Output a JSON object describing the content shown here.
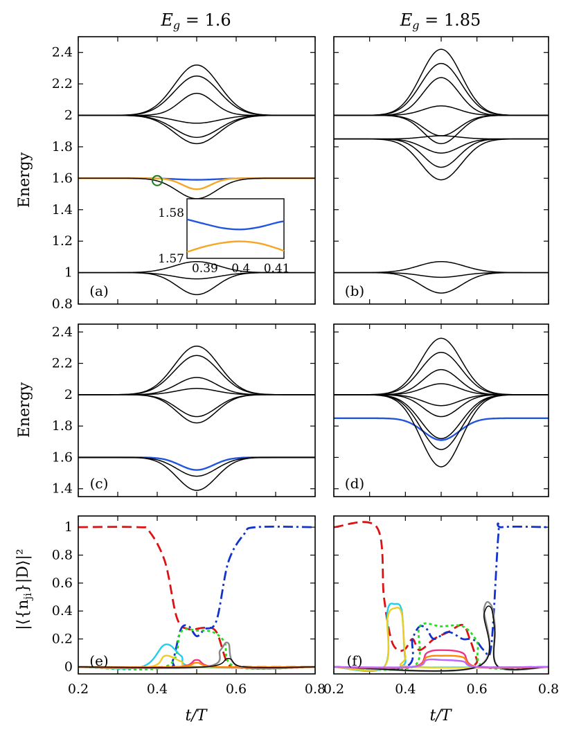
{
  "figure": {
    "col_titles": [
      "E_g = 1.6",
      "E_g = 1.85"
    ],
    "ylabel_energy": "Energy",
    "ylabel_overlap": "|⟨{n_ji}|D⟩|²",
    "xlabel": "t/T"
  },
  "chart_data": [
    {
      "panel": "(a)",
      "type": "line",
      "xlim": [
        0.2,
        0.8
      ],
      "ylim": [
        0.8,
        2.5
      ],
      "yticks": [
        "0.8",
        "1",
        "1.2",
        "1.4",
        "1.6",
        "1.8",
        "2",
        "2.2",
        "2.4"
      ],
      "xticks": [],
      "series": [
        {
          "kind": "bump",
          "base": 2.0,
          "center": 0.5,
          "width": 0.08,
          "peak": 0.32,
          "color": "#000000"
        },
        {
          "kind": "bump",
          "base": 2.0,
          "center": 0.5,
          "width": 0.08,
          "peak": 0.25,
          "color": "#000000"
        },
        {
          "kind": "bump",
          "base": 2.0,
          "center": 0.5,
          "width": 0.06,
          "peak": 0.14,
          "color": "#000000"
        },
        {
          "kind": "bump",
          "base": 2.0,
          "center": 0.5,
          "width": 0.08,
          "peak": -0.05,
          "color": "#000000"
        },
        {
          "kind": "bump",
          "base": 2.0,
          "center": 0.5,
          "width": 0.08,
          "peak": -0.14,
          "color": "#000000"
        },
        {
          "kind": "bump",
          "base": 2.0,
          "center": 0.5,
          "width": 0.08,
          "peak": -0.18,
          "color": "#000000"
        },
        {
          "kind": "bump",
          "base": 1.6,
          "center": 0.5,
          "width": 0.07,
          "peak": -0.01,
          "color": "#2255dd"
        },
        {
          "kind": "bump",
          "base": 1.6,
          "center": 0.5,
          "width": 0.05,
          "peak": -0.07,
          "color": "#f5a623"
        },
        {
          "kind": "bump",
          "base": 1.6,
          "center": 0.5,
          "width": 0.07,
          "peak": -0.13,
          "color": "#000000"
        },
        {
          "kind": "bump",
          "base": 1.0,
          "center": 0.5,
          "width": 0.08,
          "peak": 0.07,
          "color": "#000000"
        },
        {
          "kind": "bump",
          "base": 1.0,
          "center": 0.5,
          "width": 0.08,
          "peak": -0.04,
          "color": "#000000"
        },
        {
          "kind": "bump",
          "base": 1.0,
          "center": 0.5,
          "width": 0.07,
          "peak": -0.14,
          "color": "#000000"
        }
      ],
      "marker": {
        "x": 0.4,
        "y": 1.585,
        "color": "#1a7a1a"
      },
      "inset": {
        "xlim": [
          0.385,
          0.412
        ],
        "ylim": [
          1.57,
          1.583
        ],
        "xticks": [
          "0.39",
          "0.4",
          "0.41"
        ],
        "yticks": [
          "1.57",
          "1.58"
        ],
        "series": [
          {
            "x": [
              0.385,
              0.39,
              0.395,
              0.4,
              0.405,
              0.41,
              0.412
            ],
            "y": [
              1.5785,
              1.5775,
              1.5766,
              1.5763,
              1.5768,
              1.5778,
              1.5781
            ],
            "color": "#2255dd"
          },
          {
            "x": [
              0.385,
              0.39,
              0.395,
              0.4,
              0.405,
              0.41,
              0.412
            ],
            "y": [
              1.5714,
              1.5726,
              1.5734,
              1.5737,
              1.5733,
              1.5722,
              1.5716
            ],
            "color": "#f5a623"
          }
        ]
      }
    },
    {
      "panel": "(b)",
      "type": "line",
      "xlim": [
        0.2,
        0.8
      ],
      "ylim": [
        0.8,
        2.5
      ],
      "yticks": [],
      "xticks": [],
      "series": [
        {
          "kind": "bump",
          "base": 2.0,
          "center": 0.5,
          "width": 0.08,
          "peak": 0.42,
          "color": "#000000"
        },
        {
          "kind": "bump",
          "base": 2.0,
          "center": 0.5,
          "width": 0.08,
          "peak": 0.33,
          "color": "#000000"
        },
        {
          "kind": "bump",
          "base": 2.0,
          "center": 0.5,
          "width": 0.07,
          "peak": 0.24,
          "color": "#000000"
        },
        {
          "kind": "bump",
          "base": 2.0,
          "center": 0.5,
          "width": 0.07,
          "peak": 0.06,
          "color": "#000000"
        },
        {
          "kind": "bump",
          "base": 2.0,
          "center": 0.5,
          "width": 0.07,
          "peak": -0.13,
          "color": "#000000"
        },
        {
          "kind": "bump",
          "base": 2.0,
          "center": 0.5,
          "width": 0.07,
          "peak": -0.18,
          "color": "#000000"
        },
        {
          "kind": "bump",
          "base": 1.85,
          "center": 0.5,
          "width": 0.07,
          "peak": 0.02,
          "color": "#000000"
        },
        {
          "kind": "bump",
          "base": 1.85,
          "center": 0.5,
          "width": 0.07,
          "peak": -0.09,
          "color": "#000000"
        },
        {
          "kind": "bump",
          "base": 1.85,
          "center": 0.5,
          "width": 0.07,
          "peak": -0.18,
          "color": "#000000"
        },
        {
          "kind": "bump",
          "base": 1.85,
          "center": 0.5,
          "width": 0.08,
          "peak": -0.26,
          "color": "#000000"
        },
        {
          "kind": "bump",
          "base": 1.0,
          "center": 0.5,
          "width": 0.09,
          "peak": 0.07,
          "color": "#000000"
        },
        {
          "kind": "bump",
          "base": 1.0,
          "center": 0.5,
          "width": 0.08,
          "peak": -0.03,
          "color": "#000000"
        },
        {
          "kind": "bump",
          "base": 1.0,
          "center": 0.5,
          "width": 0.08,
          "peak": -0.13,
          "color": "#000000"
        }
      ]
    },
    {
      "panel": "(c)",
      "type": "line",
      "xlim": [
        0.2,
        0.8
      ],
      "ylim": [
        1.35,
        2.45
      ],
      "yticks": [
        "1.4",
        "1.6",
        "1.8",
        "2",
        "2.2",
        "2.4"
      ],
      "xticks": [],
      "series": [
        {
          "kind": "bump",
          "base": 2.0,
          "center": 0.5,
          "width": 0.08,
          "peak": 0.31,
          "color": "#000000"
        },
        {
          "kind": "bump",
          "base": 2.0,
          "center": 0.5,
          "width": 0.08,
          "peak": 0.25,
          "color": "#000000"
        },
        {
          "kind": "bump",
          "base": 2.0,
          "center": 0.5,
          "width": 0.07,
          "peak": 0.11,
          "color": "#000000"
        },
        {
          "kind": "bump",
          "base": 2.0,
          "center": 0.5,
          "width": 0.07,
          "peak": 0.04,
          "color": "#000000"
        },
        {
          "kind": "bump",
          "base": 2.0,
          "center": 0.5,
          "width": 0.07,
          "peak": -0.14,
          "color": "#000000"
        },
        {
          "kind": "bump",
          "base": 2.0,
          "center": 0.5,
          "width": 0.07,
          "peak": -0.18,
          "color": "#000000"
        },
        {
          "kind": "bump",
          "base": 1.6,
          "center": 0.5,
          "width": 0.06,
          "peak": -0.08,
          "color": "#2255dd"
        },
        {
          "kind": "bump",
          "base": 1.6,
          "center": 0.5,
          "width": 0.07,
          "peak": -0.12,
          "color": "#000000"
        },
        {
          "kind": "bump",
          "base": 1.6,
          "center": 0.5,
          "width": 0.07,
          "peak": -0.21,
          "color": "#000000"
        }
      ]
    },
    {
      "panel": "(d)",
      "type": "line",
      "xlim": [
        0.2,
        0.8
      ],
      "ylim": [
        1.35,
        2.45
      ],
      "yticks": [],
      "xticks": [],
      "series": [
        {
          "kind": "bump",
          "base": 2.0,
          "center": 0.5,
          "width": 0.08,
          "peak": 0.36,
          "color": "#000000"
        },
        {
          "kind": "bump",
          "base": 2.0,
          "center": 0.5,
          "width": 0.08,
          "peak": 0.27,
          "color": "#000000"
        },
        {
          "kind": "bump",
          "base": 2.0,
          "center": 0.5,
          "width": 0.07,
          "peak": 0.16,
          "color": "#000000"
        },
        {
          "kind": "bump",
          "base": 2.0,
          "center": 0.5,
          "width": 0.07,
          "peak": 0.07,
          "color": "#000000"
        },
        {
          "kind": "bump",
          "base": 2.0,
          "center": 0.5,
          "width": 0.07,
          "peak": -0.07,
          "color": "#000000"
        },
        {
          "kind": "bump",
          "base": 2.0,
          "center": 0.5,
          "width": 0.07,
          "peak": -0.14,
          "color": "#000000"
        },
        {
          "kind": "bump",
          "base": 1.85,
          "center": 0.5,
          "width": 0.07,
          "peak": -0.14,
          "color": "#2255dd"
        },
        {
          "kind": "bump",
          "base": 2.0,
          "center": 0.5,
          "width": 0.08,
          "peak": -0.28,
          "color": "#000000"
        },
        {
          "kind": "bump",
          "base": 2.0,
          "center": 0.5,
          "width": 0.08,
          "peak": -0.35,
          "color": "#000000"
        },
        {
          "kind": "bump",
          "base": 2.0,
          "center": 0.5,
          "width": 0.08,
          "peak": -0.46,
          "color": "#000000"
        }
      ]
    },
    {
      "panel": "(e)",
      "type": "line",
      "xlim": [
        0.2,
        0.8
      ],
      "ylim": [
        -0.05,
        1.08
      ],
      "yticks": [
        "0",
        "0.2",
        "0.4",
        "0.6",
        "0.8",
        "1"
      ],
      "xticks": [
        "0.2",
        "0.4",
        "0.6",
        "0.8"
      ],
      "series": [
        {
          "x": [
            0.2,
            0.35,
            0.38,
            0.42,
            0.45,
            0.48,
            0.52,
            0.55,
            0.58,
            0.62,
            0.8
          ],
          "y": [
            1,
            1,
            0.97,
            0.75,
            0.35,
            0.27,
            0.28,
            0.25,
            0.02,
            0,
            0
          ],
          "color": "#dd1111",
          "dash": "14,7"
        },
        {
          "x": [
            0.2,
            0.42,
            0.44,
            0.46,
            0.48,
            0.5,
            0.52,
            0.55,
            0.58,
            0.62,
            0.65,
            0.8
          ],
          "y": [
            0,
            0,
            0.05,
            0.27,
            0.29,
            0.22,
            0.27,
            0.33,
            0.75,
            0.95,
            1,
            1
          ],
          "color": "#1133cc",
          "dash": "14,5,3,5"
        },
        {
          "x": [
            0.2,
            0.42,
            0.46,
            0.5,
            0.54,
            0.57,
            0.6,
            0.8
          ],
          "y": [
            0,
            0,
            0.25,
            0.26,
            0.25,
            0.18,
            0,
            0
          ],
          "color": "#22dd22",
          "dash": "4,4"
        },
        {
          "x": [
            0.2,
            0.36,
            0.42,
            0.46,
            0.5,
            0.8
          ],
          "y": [
            0,
            0,
            0.16,
            0.08,
            0,
            0
          ],
          "color": "#22ccee"
        },
        {
          "x": [
            0.2,
            0.38,
            0.42,
            0.46,
            0.5,
            0.8
          ],
          "y": [
            0,
            0,
            0.08,
            0.04,
            0,
            0
          ],
          "color": "#eecc22"
        },
        {
          "x": [
            0.2,
            0.52,
            0.56,
            0.58,
            0.61,
            0.8
          ],
          "y": [
            0,
            0,
            0.12,
            0.17,
            0,
            0
          ],
          "color": "#888888"
        },
        {
          "x": [
            0.2,
            0.45,
            0.5,
            0.55,
            0.8
          ],
          "y": [
            0,
            0,
            0.05,
            0,
            0
          ],
          "color": "#ee3388"
        },
        {
          "x": [
            0.2,
            0.45,
            0.5,
            0.55,
            0.8
          ],
          "y": [
            0,
            0,
            0.03,
            0,
            0
          ],
          "color": "#ff8800"
        },
        {
          "x": [
            0.2,
            0.52,
            0.58,
            0.62,
            0.8
          ],
          "y": [
            0,
            0,
            0.06,
            0,
            0
          ],
          "color": "#000000"
        }
      ]
    },
    {
      "panel": "(f)",
      "type": "line",
      "xlim": [
        0.2,
        0.8
      ],
      "ylim": [
        -0.05,
        1.08
      ],
      "yticks": [],
      "xticks": [
        "0.2",
        "0.4",
        "0.6",
        "0.8"
      ],
      "series": [
        {
          "x": [
            0.2,
            0.32,
            0.34,
            0.36,
            0.38,
            0.4,
            0.42,
            0.44,
            0.48,
            0.52,
            0.56,
            0.58,
            0.6,
            0.61,
            0.8
          ],
          "y": [
            1,
            1,
            0.5,
            0.2,
            0.12,
            0.13,
            0.2,
            0.12,
            0.2,
            0.25,
            0.3,
            0.2,
            0.05,
            0,
            0
          ],
          "color": "#dd1111",
          "dash": "14,7"
        },
        {
          "x": [
            0.2,
            0.4,
            0.42,
            0.44,
            0.46,
            0.48,
            0.52,
            0.56,
            0.58,
            0.6,
            0.62,
            0.64,
            0.66,
            0.67,
            0.8
          ],
          "y": [
            0,
            0,
            0.2,
            0.29,
            0.27,
            0.2,
            0.25,
            0.2,
            0.2,
            0.18,
            0.12,
            0.15,
            0.95,
            1,
            1
          ],
          "color": "#1133cc",
          "dash": "14,5,3,5"
        },
        {
          "x": [
            0.2,
            0.42,
            0.44,
            0.5,
            0.56,
            0.6,
            0.62,
            0.8
          ],
          "y": [
            0,
            0,
            0.29,
            0.29,
            0.29,
            0.18,
            0,
            0
          ],
          "color": "#22dd22",
          "dash": "4,4"
        },
        {
          "x": [
            0.2,
            0.34,
            0.35,
            0.37,
            0.39,
            0.4,
            0.42,
            0.8
          ],
          "y": [
            0,
            0,
            0.4,
            0.45,
            0.4,
            0.05,
            0,
            0
          ],
          "color": "#22ccee"
        },
        {
          "x": [
            0.2,
            0.34,
            0.35,
            0.37,
            0.39,
            0.4,
            0.42,
            0.8
          ],
          "y": [
            0,
            0,
            0.35,
            0.42,
            0.38,
            0.08,
            0,
            0
          ],
          "color": "#eecc22"
        },
        {
          "x": [
            0.2,
            0.6,
            0.62,
            0.64,
            0.65,
            0.66,
            0.8
          ],
          "y": [
            0,
            0,
            0.42,
            0.44,
            0.3,
            0,
            0
          ],
          "color": "#888888"
        },
        {
          "x": [
            0.2,
            0.6,
            0.62,
            0.64,
            0.65,
            0.66,
            0.8
          ],
          "y": [
            0,
            0,
            0.38,
            0.42,
            0.25,
            0,
            0
          ],
          "color": "#000000"
        },
        {
          "x": [
            0.2,
            0.42,
            0.46,
            0.5,
            0.56,
            0.6,
            0.8
          ],
          "y": [
            0,
            0,
            0.1,
            0.12,
            0.1,
            0,
            0
          ],
          "color": "#ee3388"
        },
        {
          "x": [
            0.2,
            0.42,
            0.46,
            0.5,
            0.56,
            0.6,
            0.8
          ],
          "y": [
            0,
            0,
            0.07,
            0.08,
            0.07,
            0,
            0
          ],
          "color": "#ff8800"
        },
        {
          "x": [
            0.2,
            0.42,
            0.46,
            0.5,
            0.56,
            0.6,
            0.8
          ],
          "y": [
            0,
            0,
            0.05,
            0.05,
            0.04,
            0,
            0
          ],
          "color": "#bb66ff"
        }
      ]
    }
  ]
}
